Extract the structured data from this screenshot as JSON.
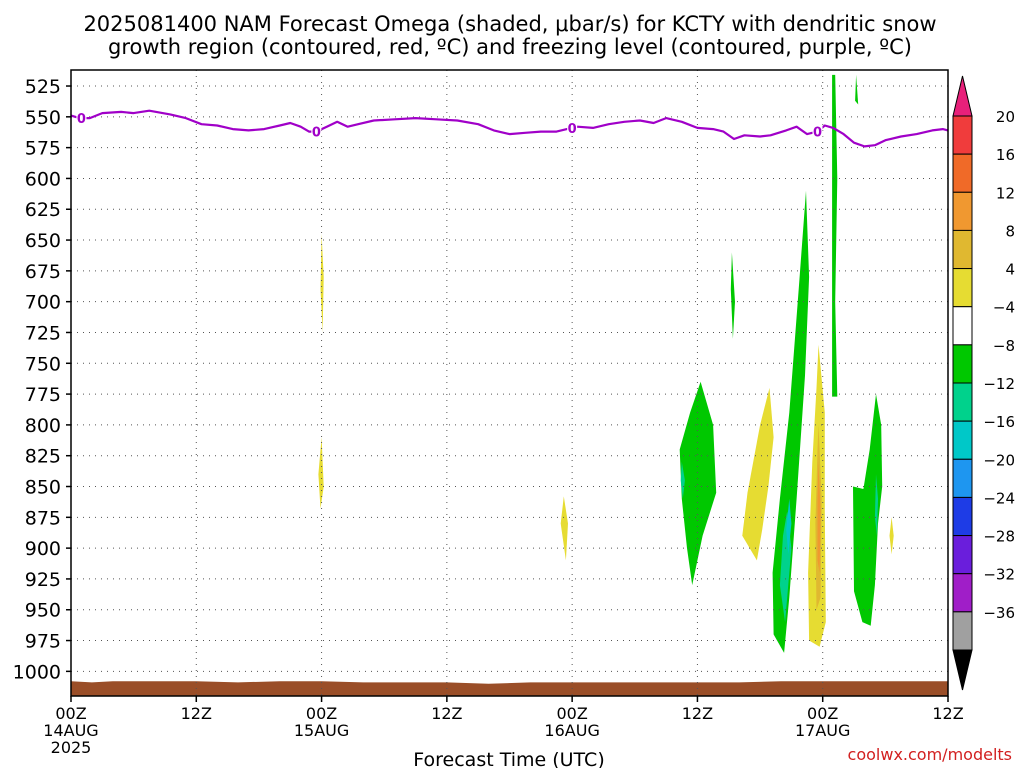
{
  "title_line1": "2025081400 NAM Forecast Omega (shaded, μbar/s) for KCTY with dendritic snow",
  "title_line2": "growth region (contoured, red, ºC) and freezing level (contoured, purple, ºC)",
  "xlabel": "Forecast Time (UTC)",
  "watermark": "coolwx.com/modelts",
  "freezing_label": "0",
  "chart_data": {
    "type": "heatmap",
    "x_range_hours": [
      0,
      84
    ],
    "y_range_hpa": [
      1020,
      512
    ],
    "y_ticks": [
      525,
      550,
      575,
      600,
      625,
      650,
      675,
      700,
      725,
      750,
      775,
      800,
      825,
      850,
      875,
      900,
      925,
      950,
      975,
      1000
    ],
    "x_ticks": [
      {
        "hour": 0,
        "line1": "00Z",
        "line2": "14AUG",
        "line3": "2025"
      },
      {
        "hour": 12,
        "line1": "12Z",
        "line2": "",
        "line3": ""
      },
      {
        "hour": 24,
        "line1": "00Z",
        "line2": "15AUG",
        "line3": ""
      },
      {
        "hour": 36,
        "line1": "12Z",
        "line2": "",
        "line3": ""
      },
      {
        "hour": 48,
        "line1": "00Z",
        "line2": "16AUG",
        "line3": ""
      },
      {
        "hour": 60,
        "line1": "12Z",
        "line2": "",
        "line3": ""
      },
      {
        "hour": 72,
        "line1": "00Z",
        "line2": "17AUG",
        "line3": ""
      },
      {
        "hour": 84,
        "line1": "12Z",
        "line2": "",
        "line3": ""
      }
    ],
    "grid": true,
    "colorbar": {
      "labels": [
        "20",
        "16",
        "12",
        "8",
        "4",
        "−4",
        "−8",
        "−12",
        "−16",
        "−20",
        "−24",
        "−28",
        "−32",
        "−36"
      ],
      "top_arrow_color": "#e8207a",
      "bottom_arrow_color": "#000000",
      "colors": [
        "#f03c3c",
        "#f06a28",
        "#f09830",
        "#e0b830",
        "#e6dc32",
        "#ffffff",
        "#00c800",
        "#00d28c",
        "#00c8c8",
        "#1e96f0",
        "#1e3ce6",
        "#6a1edc",
        "#a01ec8",
        "#a0a0a0"
      ]
    },
    "freezing_level": [
      {
        "h": 0.0,
        "p": 549
      },
      {
        "h": 0.8,
        "p": 551
      },
      {
        "h": 1.8,
        "p": 551
      },
      {
        "h": 3.0,
        "p": 547
      },
      {
        "h": 4.8,
        "p": 546
      },
      {
        "h": 6.0,
        "p": 547
      },
      {
        "h": 7.5,
        "p": 545
      },
      {
        "h": 9.5,
        "p": 548
      },
      {
        "h": 11.0,
        "p": 551
      },
      {
        "h": 12.5,
        "p": 556
      },
      {
        "h": 14.0,
        "p": 557
      },
      {
        "h": 15.5,
        "p": 560
      },
      {
        "h": 17.0,
        "p": 561
      },
      {
        "h": 18.5,
        "p": 560
      },
      {
        "h": 20.0,
        "p": 557
      },
      {
        "h": 21.0,
        "p": 555
      },
      {
        "h": 22.0,
        "p": 558
      },
      {
        "h": 22.8,
        "p": 562
      },
      {
        "h": 23.5,
        "p": 562
      },
      {
        "h": 24.5,
        "p": 558
      },
      {
        "h": 25.5,
        "p": 554
      },
      {
        "h": 26.5,
        "p": 558
      },
      {
        "h": 27.5,
        "p": 556
      },
      {
        "h": 29.0,
        "p": 553
      },
      {
        "h": 31.0,
        "p": 552
      },
      {
        "h": 33.0,
        "p": 551
      },
      {
        "h": 35.0,
        "p": 552
      },
      {
        "h": 37.0,
        "p": 553
      },
      {
        "h": 39.0,
        "p": 556
      },
      {
        "h": 40.5,
        "p": 561
      },
      {
        "h": 42.0,
        "p": 564
      },
      {
        "h": 43.5,
        "p": 563
      },
      {
        "h": 45.0,
        "p": 562
      },
      {
        "h": 46.5,
        "p": 562
      },
      {
        "h": 47.5,
        "p": 560
      },
      {
        "h": 48.5,
        "p": 558
      },
      {
        "h": 50.0,
        "p": 559
      },
      {
        "h": 51.5,
        "p": 556
      },
      {
        "h": 53.0,
        "p": 554
      },
      {
        "h": 54.5,
        "p": 553
      },
      {
        "h": 55.8,
        "p": 555
      },
      {
        "h": 57.0,
        "p": 551
      },
      {
        "h": 58.5,
        "p": 554
      },
      {
        "h": 60.0,
        "p": 559
      },
      {
        "h": 61.5,
        "p": 560
      },
      {
        "h": 62.5,
        "p": 562
      },
      {
        "h": 63.5,
        "p": 568
      },
      {
        "h": 64.5,
        "p": 565
      },
      {
        "h": 66.0,
        "p": 566
      },
      {
        "h": 67.0,
        "p": 565
      },
      {
        "h": 68.5,
        "p": 561
      },
      {
        "h": 69.5,
        "p": 558
      },
      {
        "h": 70.5,
        "p": 564
      },
      {
        "h": 71.5,
        "p": 562
      },
      {
        "h": 72.2,
        "p": 557
      },
      {
        "h": 73.0,
        "p": 559
      },
      {
        "h": 74.0,
        "p": 564
      },
      {
        "h": 75.0,
        "p": 571
      },
      {
        "h": 76.0,
        "p": 574
      },
      {
        "h": 77.0,
        "p": 573
      },
      {
        "h": 78.0,
        "p": 569
      },
      {
        "h": 79.5,
        "p": 566
      },
      {
        "h": 81.0,
        "p": 564
      },
      {
        "h": 82.5,
        "p": 561
      },
      {
        "h": 83.5,
        "p": 560
      },
      {
        "h": 84.0,
        "p": 561
      }
    ],
    "freezing_label_hours": [
      1.0,
      23.5,
      48.0,
      71.5
    ],
    "ground_level": [
      {
        "h": 0.0,
        "p": 1008
      },
      {
        "h": 2.0,
        "p": 1009
      },
      {
        "h": 4.0,
        "p": 1008
      },
      {
        "h": 8.0,
        "p": 1008
      },
      {
        "h": 12.0,
        "p": 1008
      },
      {
        "h": 16.0,
        "p": 1009
      },
      {
        "h": 20.0,
        "p": 1008
      },
      {
        "h": 24.0,
        "p": 1008
      },
      {
        "h": 28.0,
        "p": 1009
      },
      {
        "h": 32.0,
        "p": 1009
      },
      {
        "h": 36.0,
        "p": 1009
      },
      {
        "h": 40.0,
        "p": 1010
      },
      {
        "h": 44.0,
        "p": 1009
      },
      {
        "h": 48.0,
        "p": 1009
      },
      {
        "h": 52.0,
        "p": 1009
      },
      {
        "h": 56.0,
        "p": 1009
      },
      {
        "h": 60.0,
        "p": 1009
      },
      {
        "h": 64.0,
        "p": 1009
      },
      {
        "h": 68.0,
        "p": 1008
      },
      {
        "h": 72.0,
        "p": 1008
      },
      {
        "h": 76.0,
        "p": 1008
      },
      {
        "h": 80.0,
        "p": 1008
      },
      {
        "h": 84.0,
        "p": 1008
      }
    ],
    "omega_regions": [
      {
        "value": 4,
        "color": "#e6dc32",
        "points": [
          [
            24.0,
            645
          ],
          [
            24.2,
            680
          ],
          [
            24.1,
            725
          ],
          [
            23.9,
            690
          ]
        ]
      },
      {
        "value": 4,
        "color": "#e6dc32",
        "points": [
          [
            24.0,
            810
          ],
          [
            24.2,
            850
          ],
          [
            23.9,
            868
          ],
          [
            23.7,
            840
          ]
        ]
      },
      {
        "value": 4,
        "color": "#e6dc32",
        "points": [
          [
            47.2,
            858
          ],
          [
            47.6,
            880
          ],
          [
            47.4,
            910
          ],
          [
            46.9,
            880
          ]
        ]
      },
      {
        "value": -4,
        "color": "#00c800",
        "points": [
          [
            60.3,
            765
          ],
          [
            61.5,
            800
          ],
          [
            61.8,
            855
          ],
          [
            60.5,
            890
          ],
          [
            59.5,
            930
          ],
          [
            59.0,
            900
          ],
          [
            58.5,
            860
          ],
          [
            58.3,
            820
          ],
          [
            59.3,
            790
          ]
        ]
      },
      {
        "value": -8,
        "color": "#00d28c",
        "points": [
          [
            58.5,
            830
          ],
          [
            58.8,
            845
          ],
          [
            58.6,
            860
          ],
          [
            58.4,
            845
          ]
        ]
      },
      {
        "value": -4,
        "color": "#00c800",
        "points": [
          [
            63.3,
            660
          ],
          [
            63.6,
            700
          ],
          [
            63.4,
            730
          ],
          [
            63.2,
            690
          ]
        ]
      },
      {
        "value": 4,
        "color": "#e6dc32",
        "points": [
          [
            66.9,
            770
          ],
          [
            67.3,
            810
          ],
          [
            66.8,
            850
          ],
          [
            66.2,
            885
          ],
          [
            65.7,
            910
          ],
          [
            64.3,
            890
          ],
          [
            64.8,
            855
          ],
          [
            66.0,
            800
          ]
        ]
      },
      {
        "value": -4,
        "color": "#00c800",
        "points": [
          [
            70.4,
            610
          ],
          [
            70.7,
            680
          ],
          [
            70.3,
            760
          ],
          [
            69.5,
            860
          ],
          [
            68.8,
            940
          ],
          [
            68.3,
            985
          ],
          [
            67.3,
            970
          ],
          [
            67.2,
            920
          ],
          [
            67.9,
            860
          ],
          [
            68.8,
            790
          ],
          [
            69.7,
            690
          ]
        ]
      },
      {
        "value": -8,
        "color": "#00d28c",
        "points": [
          [
            68.6,
            870
          ],
          [
            69.0,
            900
          ],
          [
            68.4,
            960
          ],
          [
            67.9,
            930
          ],
          [
            68.2,
            890
          ]
        ]
      },
      {
        "value": -12,
        "color": "#00c8c8",
        "points": [
          [
            68.8,
            860
          ],
          [
            69.0,
            880
          ],
          [
            68.7,
            905
          ],
          [
            68.5,
            885
          ]
        ]
      },
      {
        "value": -4,
        "color": "#00c800",
        "points": [
          [
            73.2,
            516
          ],
          [
            73.4,
            600
          ],
          [
            73.2,
            700
          ],
          [
            73.4,
            777
          ],
          [
            72.9,
            777
          ],
          [
            72.9,
            650
          ],
          [
            72.9,
            516
          ]
        ]
      },
      {
        "value": -4,
        "color": "#00c800",
        "points": [
          [
            75.2,
            516
          ],
          [
            75.4,
            540
          ],
          [
            75.1,
            537
          ]
        ]
      },
      {
        "value": 4,
        "color": "#e6dc32",
        "points": [
          [
            71.6,
            735
          ],
          [
            72.2,
            790
          ],
          [
            72.2,
            870
          ],
          [
            72.3,
            960
          ],
          [
            71.7,
            980
          ],
          [
            70.7,
            975
          ],
          [
            70.6,
            920
          ],
          [
            71.0,
            830
          ],
          [
            71.4,
            770
          ]
        ]
      },
      {
        "value": 8,
        "color": "#e0b830",
        "points": [
          [
            71.6,
            800
          ],
          [
            71.9,
            860
          ],
          [
            71.8,
            940
          ],
          [
            71.4,
            950
          ],
          [
            71.3,
            880
          ],
          [
            71.5,
            820
          ]
        ]
      },
      {
        "value": 12,
        "color": "#f09830",
        "points": [
          [
            71.6,
            830
          ],
          [
            71.8,
            870
          ],
          [
            71.7,
            920
          ],
          [
            71.5,
            910
          ],
          [
            71.5,
            860
          ]
        ]
      },
      {
        "value": -4,
        "color": "#00c800",
        "points": [
          [
            77.1,
            775
          ],
          [
            77.6,
            800
          ],
          [
            77.7,
            850
          ],
          [
            77.3,
            880
          ],
          [
            77.0,
            930
          ],
          [
            76.6,
            963
          ],
          [
            75.8,
            960
          ],
          [
            75.0,
            935
          ],
          [
            74.9,
            850
          ],
          [
            75.9,
            852
          ],
          [
            76.5,
            820
          ]
        ]
      },
      {
        "value": -8,
        "color": "#00d28c",
        "points": [
          [
            77.1,
            840
          ],
          [
            77.3,
            860
          ],
          [
            77.2,
            890
          ],
          [
            77.0,
            875
          ]
        ]
      },
      {
        "value": 4,
        "color": "#e6dc32",
        "points": [
          [
            78.6,
            875
          ],
          [
            78.8,
            890
          ],
          [
            78.6,
            905
          ],
          [
            78.4,
            890
          ]
        ]
      }
    ]
  }
}
